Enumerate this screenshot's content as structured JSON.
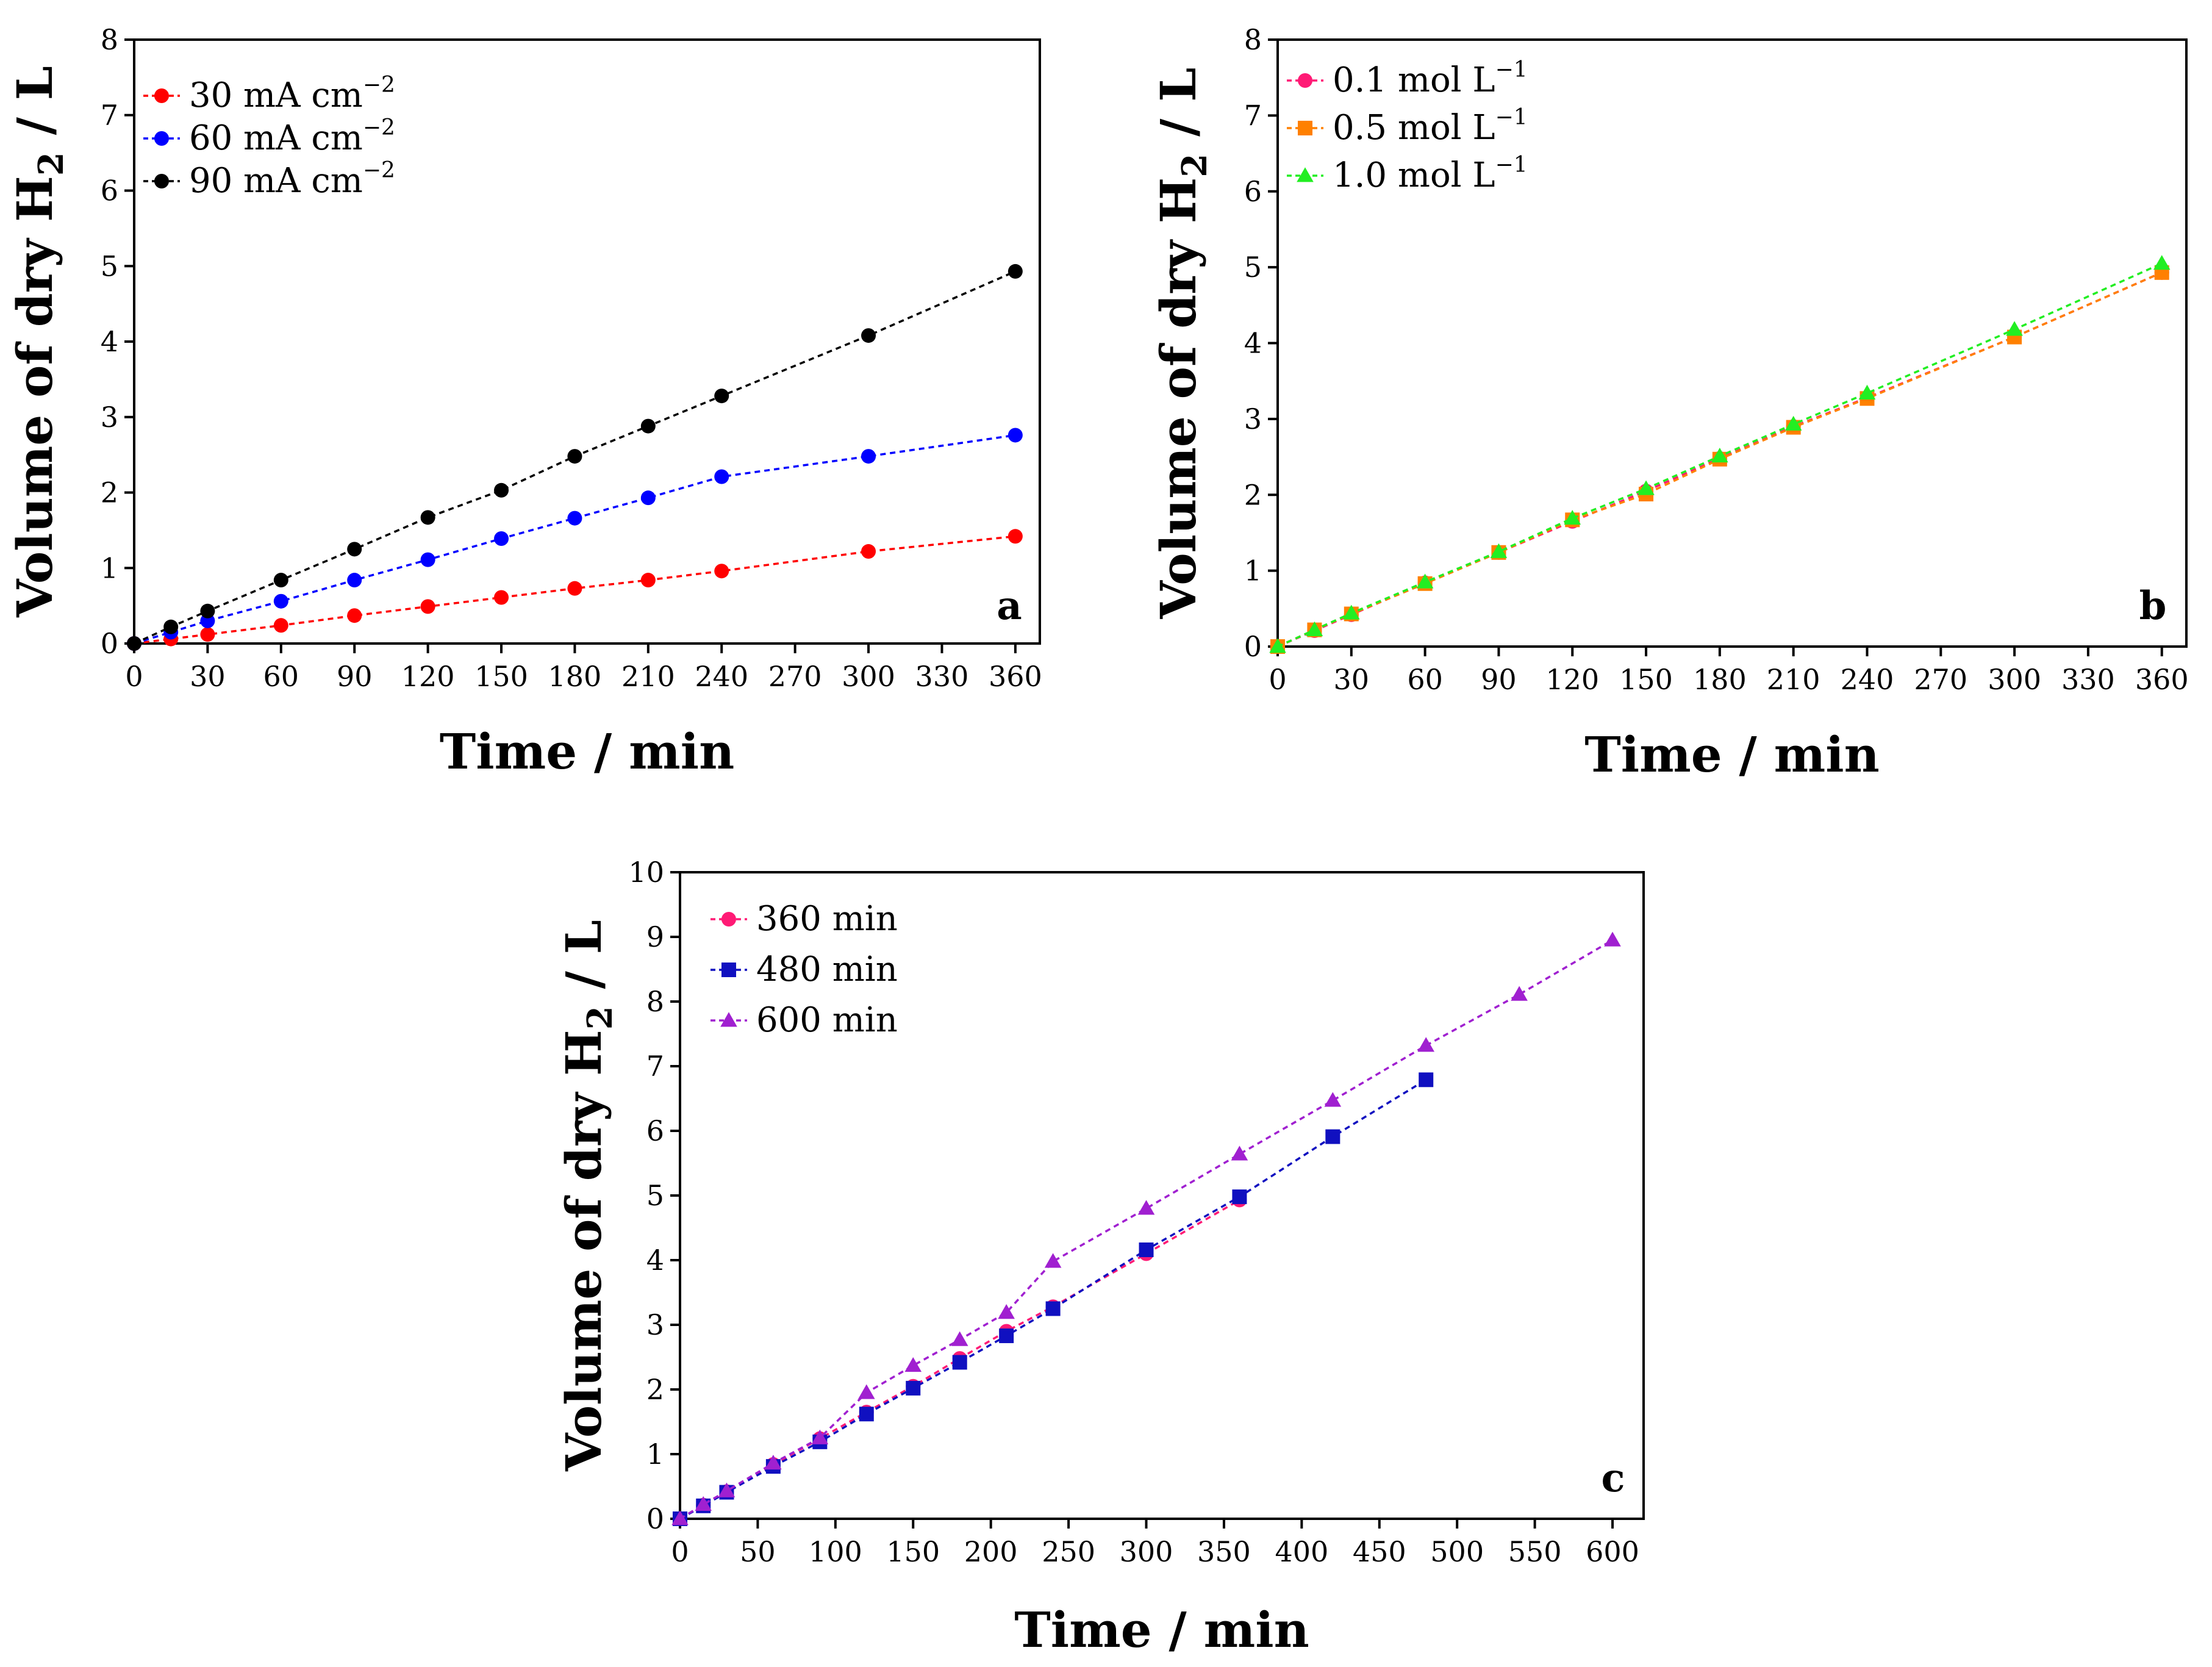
{
  "chart_data": [
    {
      "type": "line",
      "panel_label": "a",
      "title": "",
      "xlabel": "Time / min",
      "ylabel": {
        "prefix": "Volume of dry H",
        "subscript": "2",
        "suffix": " / L"
      },
      "xlim": [
        0,
        370
      ],
      "ylim": [
        0,
        8
      ],
      "xticks": [
        "0",
        "30",
        "60",
        "90",
        "120",
        "150",
        "180",
        "210",
        "240",
        "270",
        "300",
        "330",
        "360"
      ],
      "yticks": [
        "0",
        "1",
        "2",
        "3",
        "4",
        "5",
        "6",
        "7",
        "8"
      ],
      "legend_position": "top-left",
      "series": [
        {
          "name": "30 mA cm",
          "sup": "−2",
          "color": "#ff0000",
          "marker": "circle",
          "x": [
            0,
            15,
            30,
            60,
            90,
            120,
            150,
            180,
            210,
            240,
            300,
            360
          ],
          "y": [
            0,
            0.06,
            0.12,
            0.24,
            0.37,
            0.49,
            0.61,
            0.73,
            0.84,
            0.96,
            1.22,
            1.42
          ]
        },
        {
          "name": "60 mA cm",
          "sup": "−2",
          "color": "#0000ff",
          "marker": "circle",
          "x": [
            0,
            15,
            30,
            60,
            90,
            120,
            150,
            180,
            210,
            240,
            300,
            360
          ],
          "y": [
            0,
            0.15,
            0.3,
            0.56,
            0.84,
            1.11,
            1.39,
            1.66,
            1.93,
            2.21,
            2.48,
            2.76
          ]
        },
        {
          "name": "90 mA cm",
          "sup": "−2",
          "color": "#000000",
          "marker": "circle",
          "x": [
            0,
            15,
            30,
            60,
            90,
            120,
            150,
            180,
            210,
            240,
            300,
            360
          ],
          "y": [
            0,
            0.22,
            0.43,
            0.84,
            1.25,
            1.67,
            2.03,
            2.48,
            2.88,
            3.28,
            4.08,
            4.93
          ]
        }
      ]
    },
    {
      "type": "line",
      "panel_label": "b",
      "title": "",
      "xlabel": "Time / min",
      "ylabel": {
        "prefix": "Volume of dry H",
        "subscript": "2",
        "suffix": " / L"
      },
      "xlim": [
        0,
        370
      ],
      "ylim": [
        0,
        8
      ],
      "xticks": [
        "0",
        "30",
        "60",
        "90",
        "120",
        "150",
        "180",
        "210",
        "240",
        "270",
        "300",
        "330",
        "360"
      ],
      "yticks": [
        "0",
        "1",
        "2",
        "3",
        "4",
        "5",
        "6",
        "7",
        "8"
      ],
      "legend_position": "top-left",
      "series": [
        {
          "name": "0.1 mol L",
          "sup": "−1",
          "color": "#ff1a75",
          "marker": "circle",
          "x": [
            0,
            15,
            30,
            60,
            90,
            120,
            150,
            180,
            210,
            240,
            300,
            360
          ],
          "y": [
            0,
            0.21,
            0.42,
            0.84,
            1.24,
            1.65,
            2.05,
            2.48,
            2.9,
            3.28,
            4.08,
            4.93
          ]
        },
        {
          "name": "0.5 mol L",
          "sup": "−1",
          "color": "#ff8000",
          "marker": "square",
          "x": [
            0,
            15,
            30,
            60,
            90,
            120,
            150,
            180,
            210,
            240,
            300,
            360
          ],
          "y": [
            0,
            0.22,
            0.43,
            0.83,
            1.24,
            1.67,
            2.01,
            2.47,
            2.89,
            3.27,
            4.08,
            4.93
          ]
        },
        {
          "name": "1.0 mol L",
          "sup": "−1",
          "color": "#22ee22",
          "marker": "triangle",
          "x": [
            0,
            15,
            30,
            60,
            90,
            120,
            150,
            180,
            210,
            240,
            300,
            360
          ],
          "y": [
            0,
            0.22,
            0.44,
            0.85,
            1.25,
            1.69,
            2.08,
            2.51,
            2.93,
            3.34,
            4.18,
            5.05
          ]
        }
      ]
    },
    {
      "type": "line",
      "panel_label": "c",
      "title": "",
      "xlabel": "Time / min",
      "ylabel": {
        "prefix": "Volume of dry H",
        "subscript": "2",
        "suffix": " / L"
      },
      "xlim": [
        0,
        620
      ],
      "ylim": [
        0,
        10
      ],
      "xticks": [
        "0",
        "50",
        "100",
        "150",
        "200",
        "250",
        "300",
        "350",
        "400",
        "450",
        "500",
        "550",
        "600"
      ],
      "yticks": [
        "0",
        "1",
        "2",
        "3",
        "4",
        "5",
        "6",
        "7",
        "8",
        "9",
        "10"
      ],
      "legend_position": "top-left",
      "series": [
        {
          "name": "360 min",
          "sup": "",
          "color": "#ff1a75",
          "marker": "circle",
          "x": [
            0,
            15,
            30,
            60,
            90,
            120,
            150,
            180,
            210,
            240,
            300,
            360
          ],
          "y": [
            0,
            0.21,
            0.42,
            0.84,
            1.24,
            1.65,
            2.05,
            2.48,
            2.9,
            3.28,
            4.1,
            4.93
          ]
        },
        {
          "name": "480 min",
          "sup": "",
          "color": "#1010c0",
          "marker": "square",
          "x": [
            0,
            15,
            30,
            60,
            90,
            120,
            150,
            180,
            210,
            240,
            300,
            360,
            420,
            480
          ],
          "y": [
            0,
            0.2,
            0.41,
            0.81,
            1.19,
            1.62,
            2.02,
            2.42,
            2.83,
            3.25,
            4.16,
            4.98,
            5.91,
            6.79
          ]
        },
        {
          "name": "600 min",
          "sup": "",
          "color": "#a020d0",
          "marker": "triangle",
          "x": [
            0,
            15,
            30,
            60,
            90,
            120,
            150,
            180,
            210,
            240,
            300,
            360,
            420,
            480,
            540,
            600
          ],
          "y": [
            0,
            0.22,
            0.43,
            0.86,
            1.25,
            1.95,
            2.37,
            2.77,
            3.19,
            3.98,
            4.8,
            5.64,
            6.47,
            7.32,
            8.11,
            8.95
          ]
        }
      ]
    }
  ]
}
